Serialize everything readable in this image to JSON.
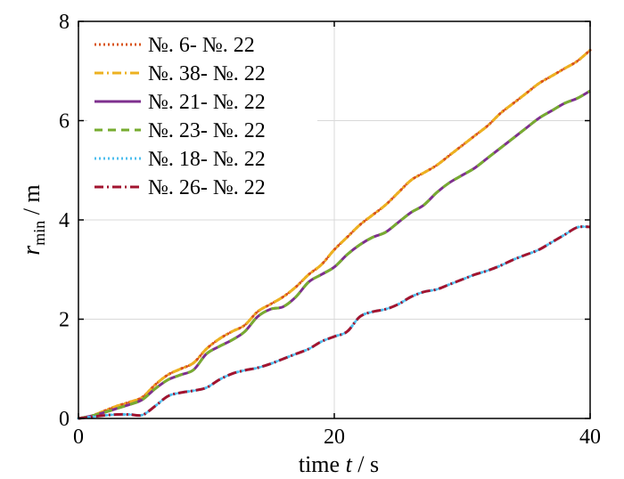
{
  "chart_data": {
    "type": "line",
    "xlabel": {
      "prefix": "time ",
      "var": "t",
      "suffix": " / s"
    },
    "ylabel": {
      "var": "r",
      "sub": "min",
      "suffix": " / m"
    },
    "xlim": [
      0,
      40
    ],
    "ylim": [
      0,
      8
    ],
    "xticks": [
      0,
      20,
      40
    ],
    "yticks": [
      0,
      2,
      4,
      6,
      8
    ],
    "grid": true,
    "legend_position": "top-left",
    "series": [
      {
        "name": "№. 6- №. 22",
        "color": "#D95319",
        "dash": "dotted",
        "x": [
          0,
          1,
          2,
          3,
          4,
          5,
          6,
          7,
          8,
          9,
          10,
          11,
          12,
          13,
          14,
          15,
          16,
          17,
          18,
          19,
          20,
          21,
          22,
          23,
          24,
          25,
          26,
          27,
          28,
          29,
          30,
          31,
          32,
          33,
          34,
          35,
          36,
          37,
          38,
          39,
          40
        ],
        "y": [
          0,
          0.05,
          0.15,
          0.25,
          0.33,
          0.43,
          0.68,
          0.88,
          1.0,
          1.12,
          1.4,
          1.6,
          1.75,
          1.88,
          2.15,
          2.3,
          2.45,
          2.65,
          2.9,
          3.1,
          3.4,
          3.65,
          3.9,
          4.1,
          4.3,
          4.55,
          4.8,
          4.95,
          5.1,
          5.3,
          5.5,
          5.7,
          5.9,
          6.15,
          6.35,
          6.55,
          6.75,
          6.9,
          7.05,
          7.2,
          7.42
        ]
      },
      {
        "name": "№. 38- №. 22",
        "color": "#EDB120",
        "dash": "dashdot",
        "x": [
          0,
          1,
          2,
          3,
          4,
          5,
          6,
          7,
          8,
          9,
          10,
          11,
          12,
          13,
          14,
          15,
          16,
          17,
          18,
          19,
          20,
          21,
          22,
          23,
          24,
          25,
          26,
          27,
          28,
          29,
          30,
          31,
          32,
          33,
          34,
          35,
          36,
          37,
          38,
          39,
          40
        ],
        "y": [
          0,
          0.05,
          0.15,
          0.25,
          0.33,
          0.43,
          0.68,
          0.88,
          1.0,
          1.12,
          1.4,
          1.6,
          1.75,
          1.88,
          2.15,
          2.3,
          2.45,
          2.65,
          2.9,
          3.1,
          3.4,
          3.65,
          3.9,
          4.1,
          4.3,
          4.55,
          4.8,
          4.95,
          5.1,
          5.3,
          5.5,
          5.7,
          5.9,
          6.15,
          6.35,
          6.55,
          6.75,
          6.9,
          7.05,
          7.2,
          7.42
        ]
      },
      {
        "name": "№. 21- №. 22",
        "color": "#7E2F8E",
        "dash": "solid",
        "x": [
          0,
          1,
          2,
          3,
          4,
          5,
          6,
          7,
          8,
          9,
          10,
          11,
          12,
          13,
          14,
          15,
          16,
          17,
          18,
          19,
          20,
          21,
          22,
          23,
          24,
          25,
          26,
          27,
          28,
          29,
          30,
          31,
          32,
          33,
          34,
          35,
          36,
          37,
          38,
          39,
          40
        ],
        "y": [
          0,
          0.05,
          0.12,
          0.2,
          0.28,
          0.38,
          0.6,
          0.78,
          0.88,
          0.98,
          1.3,
          1.45,
          1.58,
          1.75,
          2.05,
          2.2,
          2.25,
          2.45,
          2.75,
          2.9,
          3.05,
          3.3,
          3.5,
          3.65,
          3.75,
          3.95,
          4.15,
          4.3,
          4.55,
          4.75,
          4.9,
          5.05,
          5.25,
          5.45,
          5.65,
          5.85,
          6.05,
          6.2,
          6.35,
          6.45,
          6.6
        ]
      },
      {
        "name": "№. 23- №. 22",
        "color": "#77AC30",
        "dash": "dashed",
        "x": [
          0,
          1,
          2,
          3,
          4,
          5,
          6,
          7,
          8,
          9,
          10,
          11,
          12,
          13,
          14,
          15,
          16,
          17,
          18,
          19,
          20,
          21,
          22,
          23,
          24,
          25,
          26,
          27,
          28,
          29,
          30,
          31,
          32,
          33,
          34,
          35,
          36,
          37,
          38,
          39,
          40
        ],
        "y": [
          0,
          0.05,
          0.12,
          0.2,
          0.28,
          0.38,
          0.6,
          0.78,
          0.88,
          0.98,
          1.3,
          1.45,
          1.58,
          1.75,
          2.05,
          2.2,
          2.25,
          2.45,
          2.75,
          2.9,
          3.05,
          3.3,
          3.5,
          3.65,
          3.75,
          3.95,
          4.15,
          4.3,
          4.55,
          4.75,
          4.9,
          5.05,
          5.25,
          5.45,
          5.65,
          5.85,
          6.05,
          6.2,
          6.35,
          6.45,
          6.6
        ]
      },
      {
        "name": "№. 18- №. 22",
        "color": "#4DBEEE",
        "dash": "dotted",
        "x": [
          0,
          1,
          2,
          3,
          4,
          5,
          6,
          7,
          8,
          9,
          10,
          11,
          12,
          13,
          14,
          15,
          16,
          17,
          18,
          19,
          20,
          21,
          22,
          23,
          24,
          25,
          26,
          27,
          28,
          29,
          30,
          31,
          32,
          33,
          34,
          35,
          36,
          37,
          38,
          39,
          40
        ],
        "y": [
          0,
          0.03,
          0.06,
          0.08,
          0.08,
          0.07,
          0.25,
          0.45,
          0.52,
          0.56,
          0.62,
          0.78,
          0.9,
          0.97,
          1.02,
          1.1,
          1.2,
          1.3,
          1.4,
          1.55,
          1.65,
          1.75,
          2.05,
          2.15,
          2.2,
          2.3,
          2.45,
          2.55,
          2.6,
          2.7,
          2.8,
          2.9,
          2.98,
          3.08,
          3.2,
          3.3,
          3.4,
          3.55,
          3.7,
          3.85,
          3.86
        ]
      },
      {
        "name": "№. 26- №. 22",
        "color": "#A2142F",
        "dash": "dashdot",
        "x": [
          0,
          1,
          2,
          3,
          4,
          5,
          6,
          7,
          8,
          9,
          10,
          11,
          12,
          13,
          14,
          15,
          16,
          17,
          18,
          19,
          20,
          21,
          22,
          23,
          24,
          25,
          26,
          27,
          28,
          29,
          30,
          31,
          32,
          33,
          34,
          35,
          36,
          37,
          38,
          39,
          40
        ],
        "y": [
          0,
          0.03,
          0.06,
          0.08,
          0.08,
          0.07,
          0.25,
          0.45,
          0.52,
          0.56,
          0.62,
          0.78,
          0.9,
          0.97,
          1.02,
          1.1,
          1.2,
          1.3,
          1.4,
          1.55,
          1.65,
          1.75,
          2.05,
          2.15,
          2.2,
          2.3,
          2.45,
          2.55,
          2.6,
          2.7,
          2.8,
          2.9,
          2.98,
          3.08,
          3.2,
          3.3,
          3.4,
          3.55,
          3.7,
          3.85,
          3.86
        ]
      }
    ]
  }
}
